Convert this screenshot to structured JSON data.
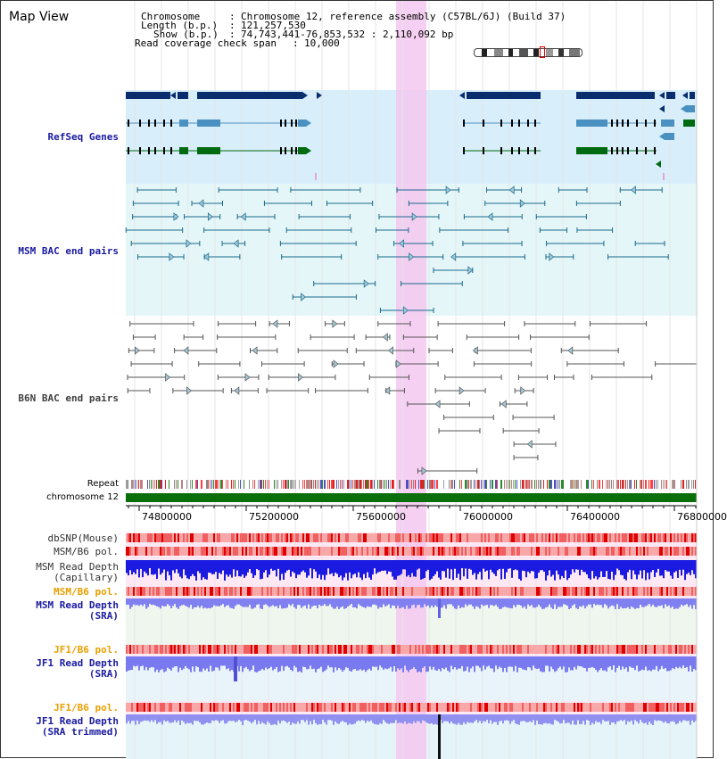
{
  "view_title": "Map View",
  "header": {
    "chromosome_label": "Chromosome",
    "chromosome_value": "Chromosome 12, reference assembly (C57BL/6J) (Build 37)",
    "length_label": "Length (b.p.)",
    "length_value": "121,257,530",
    "show_label": "Show (b.p.)",
    "show_value": "74,743,441-76,853,532 : 2,110,092 bp",
    "coverage_label": "Read coverage check span",
    "coverage_value": "10,000"
  },
  "tracks": {
    "refseq": "RefSeq Genes",
    "msm_bac": "MSM BAC end pairs",
    "b6n_bac": "B6N BAC end pairs",
    "repeat": "Repeat",
    "chromosome": "chromosome 12",
    "dbsnp": "dbSNP(Mouse)",
    "msm_b6_pol_1": "MSM/B6 pol.",
    "msm_depth_cap_1": "MSM Read Depth",
    "msm_depth_cap_2": "(Capillary)",
    "msm_b6_pol_2": "MSM/B6 pol.",
    "msm_depth_sra_1": "MSM Read Depth",
    "msm_depth_sra_2": "(SRA)",
    "jf1_b6_pol_1": "JF1/B6 pol.",
    "jf1_depth_sra_1": "JF1 Read Depth",
    "jf1_depth_sra_2": "(SRA)",
    "jf1_b6_pol_2": "JF1/B6 pol.",
    "jf1_depth_trim_1": "JF1 Read Depth",
    "jf1_depth_trim_2": "(SRA trimmed)"
  },
  "axis": {
    "ticks": [
      "74800000",
      "75200000",
      "75600000",
      "76000000",
      "76400000",
      "76800000"
    ]
  },
  "colors": {
    "highlight": "#f5c8f0",
    "refseq_bg": "#d8eefa",
    "msm_bg": "#e4f6f8",
    "gene_dark": "#0a2d6e",
    "gene_mid": "#4a90c0",
    "gene_green": "#006a10",
    "msm_pair": "#1a6a8c",
    "b6n_pair": "#555555",
    "chrom_bar": "#0a6e0a",
    "depth_dark": "#1a1ae0",
    "depth_light": "#7a7af0",
    "pol_red": "#f04040"
  }
}
